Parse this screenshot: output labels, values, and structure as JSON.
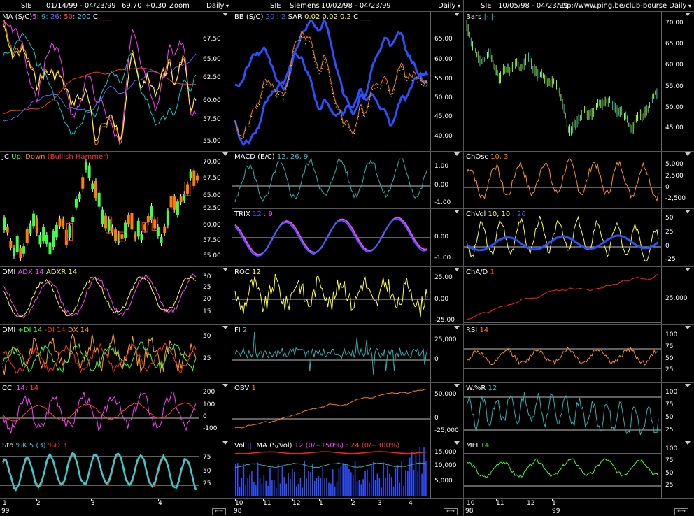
{
  "columns": [
    {
      "header": {
        "symbol": "SIE",
        "range": "01/14/99 - 04/23/99",
        "price": "69.70",
        "change": "+0.30",
        "zoom": "Zoom",
        "period": "Daily"
      },
      "panes": [
        {
          "key": "ma",
          "label": [
            [
              "MA (S/C)",
              "#fff"
            ],
            [
              "5",
              "#ff40ff"
            ],
            [
              ": 9",
              "#00d0d0"
            ],
            [
              ": 26",
              "#6060ff"
            ],
            [
              ": 50",
              "#ff4040"
            ],
            [
              ": 200",
              "#40e0ff"
            ],
            [
              "  C",
              "#fff"
            ],
            [
              " ___",
              "#ff5000"
            ]
          ],
          "ticks": [
            "67.50",
            "65.00",
            "62.50",
            "60.00",
            "57.50",
            "55.00"
          ]
        },
        {
          "key": "jc",
          "label": [
            [
              "JC ",
              "#fff"
            ],
            [
              "Up",
              "#40ff40"
            ],
            [
              ", ",
              "#fff"
            ],
            [
              "Down",
              "#ff8000"
            ],
            [
              " (Bullish Hammer)",
              "#ff3030"
            ]
          ],
          "ticks": [
            "70.00",
            "67.50",
            "65.00",
            "62.50",
            "60.00",
            "57.50",
            "55.00"
          ]
        },
        {
          "key": "dmi1",
          "label": [
            [
              "DMI ",
              "#fff"
            ],
            [
              "ADX 14",
              "#ff40ff"
            ],
            [
              "  ADXR 14",
              "#ffff40"
            ]
          ],
          "ticks": [
            "30",
            "25",
            "20",
            "15"
          ]
        },
        {
          "key": "dmi2",
          "label": [
            [
              "DMI ",
              "#fff"
            ],
            [
              "+DI 14",
              "#40ff40"
            ],
            [
              "  -DI 14",
              "#ff3030"
            ],
            [
              "  DX 14",
              "#ffa030"
            ]
          ],
          "ticks": [
            "50",
            "25"
          ]
        },
        {
          "key": "cci",
          "label": [
            [
              "CCI ",
              "#fff"
            ],
            [
              "14",
              "#ff40ff"
            ],
            [
              ": 14",
              "#ff4040"
            ]
          ],
          "ticks": [
            "200",
            "100",
            "0",
            "-100"
          ]
        },
        {
          "key": "sto",
          "label": [
            [
              "Sto ",
              "#fff"
            ],
            [
              "%K 5 (3)",
              "#30d0d0"
            ],
            [
              "  %D 3",
              "#ff3030"
            ]
          ],
          "ticks": [
            "75",
            "50",
            "25"
          ]
        }
      ],
      "xaxis": {
        "labels": [
          "1",
          "2",
          "3",
          "4"
        ],
        "year": "99"
      }
    },
    {
      "header": {
        "symbol": "SIE",
        "name": "Siemens",
        "range": "10/02/98 - 04/23/99",
        "period": "Daily"
      },
      "panes": [
        {
          "key": "bb",
          "label": [
            [
              "BB (S/C) ",
              "#fff"
            ],
            [
              "20",
              "#4060ff"
            ],
            [
              " : 2",
              "#4060ff"
            ],
            [
              "  SAR  ",
              "#fff"
            ],
            [
              "0.02",
              "#ffff40"
            ],
            [
              "  0.02",
              "#ffff40"
            ],
            [
              "  0.2",
              "#ffff40"
            ],
            [
              "   C ",
              "#fff"
            ],
            [
              "___",
              "#ff8000"
            ]
          ],
          "ticks": [
            "65.00",
            "60.00",
            "55.00",
            "50.00",
            "45.00",
            "40.00"
          ]
        },
        {
          "key": "macd",
          "label": [
            [
              "MACD (E/C) ",
              "#fff"
            ],
            [
              "12, 26, 9",
              "#40c0c0"
            ]
          ],
          "ticks": [
            "1.00",
            "0.00",
            "-1.00"
          ]
        },
        {
          "key": "trix",
          "label": [
            [
              "TRIX  ",
              "#fff"
            ],
            [
              "12",
              "#4060ff"
            ],
            [
              " : 9",
              "#ff40ff"
            ]
          ],
          "ticks": [
            "0.00",
            "-1.00"
          ]
        },
        {
          "key": "roc",
          "label": [
            [
              "ROC  ",
              "#fff"
            ],
            [
              "12",
              "#ffff40"
            ]
          ],
          "ticks": [
            "25.00",
            "0.00",
            "-25.00"
          ]
        },
        {
          "key": "fi",
          "label": [
            [
              "FI  ",
              "#fff"
            ],
            [
              "2",
              "#40c0c0"
            ]
          ],
          "ticks": [
            "25,000",
            "0"
          ]
        },
        {
          "key": "obv",
          "label": [
            [
              "OBV  ",
              "#fff"
            ],
            [
              "1",
              "#ff8000"
            ]
          ],
          "ticks": [
            "50,000",
            "0",
            "-25,000"
          ]
        },
        {
          "key": "vol",
          "label": [
            [
              "Vol  ",
              "#fff"
            ],
            [
              "|||",
              "#4060ff"
            ],
            [
              "  MA  (S/Vol)  ",
              "#fff"
            ],
            [
              "12 (0/+150%)",
              "#ff40ff"
            ],
            [
              "  :  24 (0/+300%)",
              "#ff3030"
            ]
          ],
          "ticks": [
            "15,000",
            "10,000",
            "5,000"
          ]
        }
      ],
      "xaxis": {
        "labels": [
          "10",
          "11",
          "12",
          "1",
          "2",
          "3",
          "4"
        ],
        "year": "98"
      }
    },
    {
      "header": {
        "symbol": "SIE",
        "range": "10/05/98 - 04/23/99",
        "url": "http://www.ping.be/club-bourse",
        "period": "Daily"
      },
      "panes": [
        {
          "key": "bars",
          "label": [
            [
              "Bars  ",
              "#fff"
            ],
            [
              "|-  |-",
              "#40c0c0"
            ]
          ],
          "ticks": [
            "70.00",
            "65.00",
            "60.00",
            "55.00",
            "50.00",
            "45.00"
          ]
        },
        {
          "key": "chosc",
          "label": [
            [
              "ChOsc  ",
              "#fff"
            ],
            [
              "10, 3",
              "#ff8000"
            ]
          ],
          "ticks": [
            "5,000",
            "2,500",
            "0",
            "-2,500"
          ]
        },
        {
          "key": "chvol",
          "label": [
            [
              "ChVol  ",
              "#fff"
            ],
            [
              "10, 10",
              "#ffff40"
            ],
            [
              " : 26",
              "#4060ff"
            ]
          ],
          "ticks": [
            "50",
            "25",
            "0",
            "-25"
          ]
        },
        {
          "key": "chad",
          "label": [
            [
              "ChA/D  ",
              "#fff"
            ],
            [
              "1",
              "#ff3030"
            ]
          ],
          "ticks": [
            "25,000"
          ]
        },
        {
          "key": "rsi",
          "label": [
            [
              "RSI  ",
              "#fff"
            ],
            [
              "14",
              "#ff8000"
            ]
          ],
          "ticks": [
            "100",
            "75",
            "50",
            "25"
          ]
        },
        {
          "key": "wr",
          "label": [
            [
              "W.%R  ",
              "#fff"
            ],
            [
              "12",
              "#40c0c0"
            ]
          ],
          "ticks": [
            "100",
            "75",
            "50",
            "25"
          ]
        },
        {
          "key": "mfi",
          "label": [
            [
              "MFI  ",
              "#fff"
            ],
            [
              "14",
              "#40ff40"
            ]
          ],
          "ticks": [
            "100",
            "75",
            "50",
            "25"
          ]
        }
      ],
      "xaxis": {
        "labels": [
          "10",
          "11",
          "12",
          "1"
        ],
        "year": "98",
        "year2": "99"
      }
    }
  ],
  "colors": {
    "background": "#000000",
    "grid": "#c0c0c0",
    "separator": "#555555"
  }
}
